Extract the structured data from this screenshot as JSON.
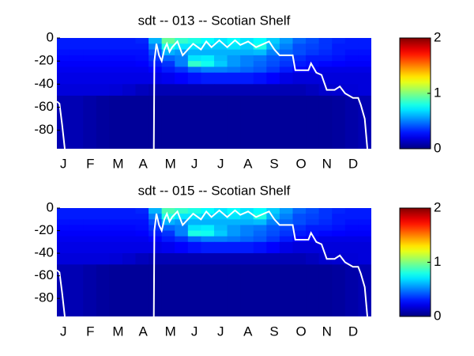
{
  "chart_data": [
    {
      "type": "heatmap",
      "title": "sdt -- 013 -- Scotian Shelf",
      "categories": [
        "J",
        "F",
        "M",
        "A",
        "M",
        "J",
        "J",
        "A",
        "S",
        "O",
        "N",
        "D"
      ],
      "xlim": [
        0,
        12
      ],
      "ylim": [
        -96,
        0
      ],
      "yticks": [
        0,
        -20,
        -40,
        -60,
        -80
      ],
      "xbins": [
        0,
        0.5,
        1,
        1.5,
        2,
        2.5,
        3,
        3.5,
        4,
        4.5,
        5,
        5.5,
        6,
        6.5,
        7,
        7.5,
        8,
        8.5,
        9,
        9.5,
        10,
        10.5,
        11,
        11.5,
        12
      ],
      "ybins": [
        0,
        -5,
        -10,
        -15,
        -20,
        -25,
        -30,
        -40,
        -50,
        -96
      ],
      "values": [
        [
          0.3,
          0.3,
          0.3,
          0.3,
          0.3,
          0.3,
          0.32,
          0.6,
          0.95,
          0.85,
          0.8,
          0.75,
          0.7,
          0.75,
          0.7,
          0.75,
          0.65,
          0.55,
          0.45,
          0.4,
          0.35,
          0.32,
          0.3,
          0.3
        ],
        [
          0.3,
          0.3,
          0.3,
          0.3,
          0.3,
          0.3,
          0.3,
          0.5,
          0.8,
          0.7,
          0.7,
          0.65,
          0.65,
          0.7,
          0.65,
          0.8,
          0.6,
          0.5,
          0.4,
          0.38,
          0.35,
          0.3,
          0.3,
          0.3
        ],
        [
          0.28,
          0.28,
          0.28,
          0.28,
          0.28,
          0.28,
          0.28,
          0.4,
          0.6,
          0.55,
          0.6,
          0.6,
          0.6,
          0.6,
          0.6,
          0.62,
          0.5,
          0.45,
          0.4,
          0.36,
          0.33,
          0.3,
          0.28,
          0.28
        ],
        [
          0.26,
          0.26,
          0.26,
          0.26,
          0.26,
          0.26,
          0.27,
          0.35,
          0.45,
          0.5,
          0.7,
          0.72,
          0.62,
          0.55,
          0.5,
          0.48,
          0.42,
          0.38,
          0.34,
          0.3,
          0.3,
          0.28,
          0.26,
          0.26
        ],
        [
          0.24,
          0.24,
          0.24,
          0.24,
          0.24,
          0.24,
          0.25,
          0.3,
          0.35,
          0.5,
          0.85,
          0.78,
          0.65,
          0.55,
          0.5,
          0.45,
          0.4,
          0.35,
          0.3,
          0.28,
          0.26,
          0.25,
          0.24,
          0.24
        ],
        [
          0.22,
          0.22,
          0.22,
          0.22,
          0.22,
          0.22,
          0.22,
          0.25,
          0.3,
          0.35,
          0.45,
          0.5,
          0.5,
          0.48,
          0.45,
          0.42,
          0.36,
          0.3,
          0.25,
          0.22,
          0.2,
          0.2,
          0.2,
          0.2
        ],
        [
          0.2,
          0.2,
          0.2,
          0.2,
          0.2,
          0.2,
          0.2,
          0.2,
          0.22,
          0.25,
          0.28,
          0.3,
          0.3,
          0.3,
          0.3,
          0.28,
          0.25,
          0.2,
          0.18,
          0.18,
          0.18,
          0.18,
          0.18,
          0.18
        ],
        [
          0.18,
          0.18,
          0.18,
          0.18,
          0.17,
          0.15,
          0.12,
          0.1,
          0.1,
          0.1,
          0.1,
          0.1,
          0.1,
          0.1,
          0.1,
          0.1,
          0.1,
          0.1,
          0.1,
          0.12,
          0.15,
          0.16,
          0.17,
          0.18
        ],
        [
          0.1,
          0.1,
          0.08,
          0.06,
          0.05,
          0.05,
          0.05,
          0.05,
          0.05,
          0.05,
          0.05,
          0.05,
          0.05,
          0.05,
          0.05,
          0.05,
          0.05,
          0.05,
          0.05,
          0.05,
          0.05,
          0.06,
          0.08,
          0.1
        ]
      ],
      "zlim": [
        0,
        2
      ],
      "zticks": [
        0,
        1,
        2
      ],
      "colormap": "jet",
      "line": {
        "color": "#ffffff",
        "x": [
          0,
          0.1,
          0.2,
          0.3,
          null,
          3.7,
          3.72,
          3.8,
          3.9,
          4.0,
          4.1,
          4.2,
          4.3,
          4.4,
          4.6,
          4.8,
          5.0,
          5.2,
          5.5,
          5.7,
          5.9,
          6.2,
          6.5,
          6.8,
          7.0,
          7.3,
          7.6,
          7.9,
          8.1,
          8.3,
          8.5,
          8.7,
          9.0,
          9.1,
          9.6,
          9.7,
          9.9,
          10.1,
          10.3,
          10.6,
          10.8,
          11.0,
          11.3,
          11.5,
          11.6,
          11.75,
          11.85
        ],
        "values": [
          -55,
          -57,
          -75,
          -96,
          null,
          -96,
          -20,
          -5,
          -15,
          -20,
          -10,
          -5,
          -12,
          -8,
          -3,
          -15,
          -10,
          -5,
          -10,
          -3,
          -8,
          -2,
          -8,
          -2,
          -6,
          -3,
          -8,
          -5,
          -3,
          -10,
          -15,
          -15,
          -15,
          -28,
          -28,
          -22,
          -30,
          -32,
          -45,
          -45,
          -42,
          -48,
          -52,
          -52,
          -58,
          -70,
          -96
        ]
      }
    },
    {
      "type": "heatmap",
      "title": "sdt -- 015 -- Scotian Shelf",
      "categories": [
        "J",
        "F",
        "M",
        "A",
        "M",
        "J",
        "J",
        "A",
        "S",
        "O",
        "N",
        "D"
      ],
      "xlim": [
        0,
        12
      ],
      "ylim": [
        -96,
        0
      ],
      "yticks": [
        0,
        -20,
        -40,
        -60,
        -80
      ],
      "xbins": [
        0,
        0.5,
        1,
        1.5,
        2,
        2.5,
        3,
        3.5,
        4,
        4.5,
        5,
        5.5,
        6,
        6.5,
        7,
        7.5,
        8,
        8.5,
        9,
        9.5,
        10,
        10.5,
        11,
        11.5,
        12
      ],
      "ybins": [
        0,
        -5,
        -10,
        -15,
        -20,
        -25,
        -30,
        -40,
        -50,
        -96
      ],
      "values": [
        [
          0.3,
          0.3,
          0.3,
          0.3,
          0.3,
          0.3,
          0.32,
          0.6,
          0.9,
          0.85,
          0.8,
          0.75,
          0.7,
          0.75,
          0.7,
          0.75,
          0.65,
          0.55,
          0.45,
          0.4,
          0.35,
          0.32,
          0.3,
          0.3
        ],
        [
          0.3,
          0.3,
          0.3,
          0.3,
          0.3,
          0.3,
          0.3,
          0.5,
          0.8,
          0.7,
          0.7,
          0.65,
          0.65,
          0.7,
          0.65,
          0.8,
          0.6,
          0.5,
          0.4,
          0.38,
          0.35,
          0.3,
          0.3,
          0.3
        ],
        [
          0.28,
          0.28,
          0.28,
          0.28,
          0.28,
          0.28,
          0.28,
          0.4,
          0.6,
          0.55,
          0.6,
          0.6,
          0.6,
          0.6,
          0.6,
          0.62,
          0.5,
          0.45,
          0.4,
          0.36,
          0.33,
          0.3,
          0.28,
          0.28
        ],
        [
          0.26,
          0.26,
          0.26,
          0.26,
          0.26,
          0.26,
          0.27,
          0.35,
          0.45,
          0.5,
          0.7,
          0.72,
          0.62,
          0.55,
          0.5,
          0.48,
          0.42,
          0.38,
          0.34,
          0.3,
          0.3,
          0.28,
          0.26,
          0.26
        ],
        [
          0.24,
          0.24,
          0.24,
          0.24,
          0.24,
          0.24,
          0.25,
          0.3,
          0.35,
          0.5,
          0.8,
          0.78,
          0.65,
          0.55,
          0.5,
          0.45,
          0.4,
          0.35,
          0.3,
          0.28,
          0.26,
          0.25,
          0.24,
          0.24
        ],
        [
          0.22,
          0.22,
          0.22,
          0.22,
          0.22,
          0.22,
          0.22,
          0.25,
          0.3,
          0.35,
          0.45,
          0.5,
          0.5,
          0.48,
          0.45,
          0.42,
          0.36,
          0.3,
          0.25,
          0.22,
          0.2,
          0.2,
          0.2,
          0.2
        ],
        [
          0.2,
          0.2,
          0.2,
          0.2,
          0.2,
          0.2,
          0.2,
          0.2,
          0.22,
          0.25,
          0.28,
          0.3,
          0.3,
          0.3,
          0.3,
          0.28,
          0.25,
          0.2,
          0.18,
          0.18,
          0.18,
          0.18,
          0.18,
          0.18
        ],
        [
          0.18,
          0.18,
          0.18,
          0.18,
          0.17,
          0.15,
          0.12,
          0.1,
          0.1,
          0.1,
          0.1,
          0.1,
          0.1,
          0.1,
          0.1,
          0.1,
          0.1,
          0.1,
          0.1,
          0.12,
          0.15,
          0.16,
          0.17,
          0.18
        ],
        [
          0.1,
          0.1,
          0.08,
          0.06,
          0.05,
          0.05,
          0.05,
          0.05,
          0.05,
          0.05,
          0.05,
          0.05,
          0.05,
          0.05,
          0.05,
          0.05,
          0.05,
          0.05,
          0.05,
          0.05,
          0.05,
          0.06,
          0.08,
          0.1
        ]
      ],
      "zlim": [
        0,
        2
      ],
      "zticks": [
        0,
        1,
        2
      ],
      "colormap": "jet",
      "line": {
        "color": "#ffffff",
        "x": [
          0,
          0.1,
          0.2,
          0.3,
          null,
          3.7,
          3.72,
          3.8,
          3.9,
          4.0,
          4.1,
          4.2,
          4.3,
          4.4,
          4.6,
          4.8,
          5.0,
          5.2,
          5.5,
          5.7,
          5.9,
          6.2,
          6.5,
          6.8,
          7.0,
          7.3,
          7.6,
          7.9,
          8.1,
          8.3,
          8.5,
          8.7,
          9.0,
          9.1,
          9.6,
          9.7,
          9.9,
          10.1,
          10.3,
          10.6,
          10.8,
          11.0,
          11.3,
          11.5,
          11.6,
          11.75,
          11.85
        ],
        "values": [
          -55,
          -57,
          -75,
          -96,
          null,
          -96,
          -20,
          -5,
          -15,
          -20,
          -10,
          -5,
          -12,
          -8,
          -3,
          -15,
          -10,
          -5,
          -10,
          -3,
          -8,
          -2,
          -8,
          -2,
          -6,
          -3,
          -8,
          -5,
          -3,
          -10,
          -15,
          -15,
          -15,
          -28,
          -28,
          -22,
          -30,
          -32,
          -45,
          -45,
          -42,
          -48,
          -52,
          -52,
          -58,
          -70,
          -96
        ]
      }
    }
  ]
}
